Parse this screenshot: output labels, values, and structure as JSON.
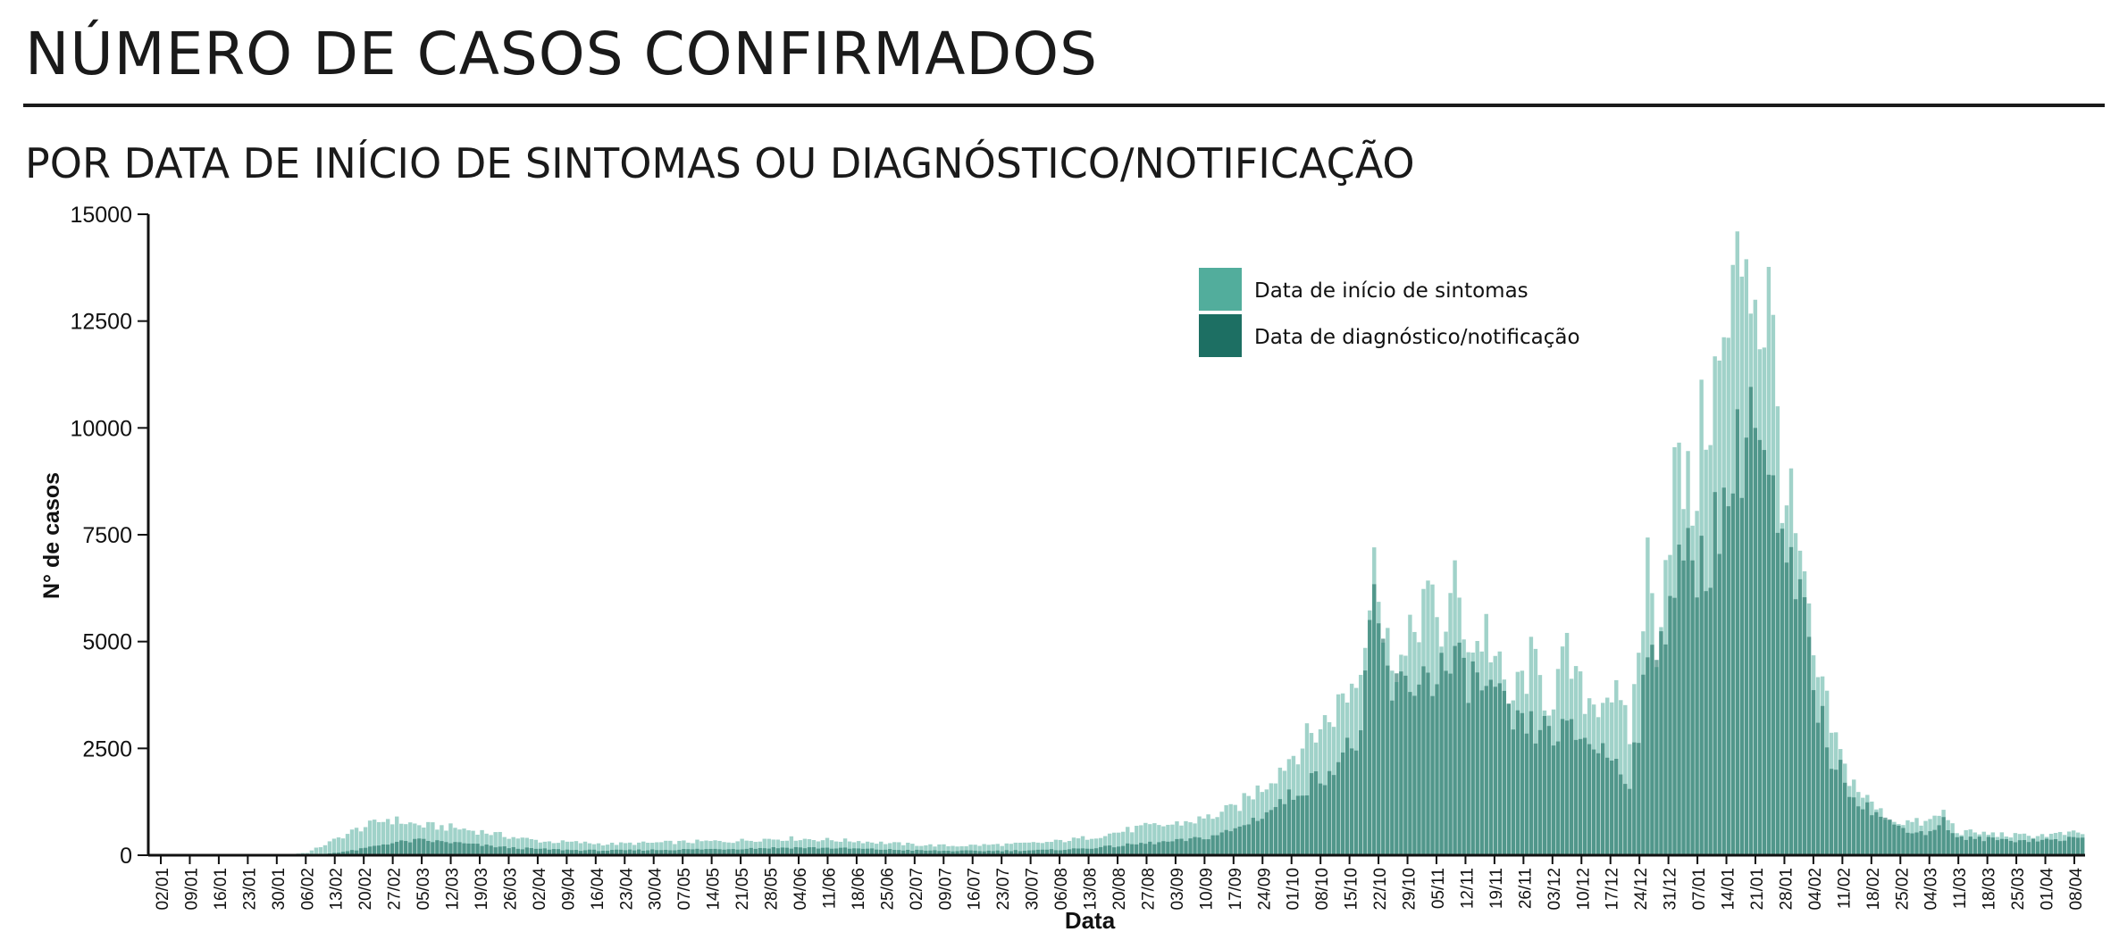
{
  "header": {
    "title": "NÚMERO DE CASOS CONFIRMADOS",
    "subtitle": "POR DATA DE INÍCIO DE SINTOMAS OU DIAGNÓSTICO/NOTIFICAÇÃO"
  },
  "colors": {
    "onset": "#52ad9c",
    "notification": "#1d6f63",
    "axis": "#111111"
  },
  "chart_data": {
    "type": "bar",
    "title": "NÚMERO DE CASOS CONFIRMADOS",
    "subtitle": "POR DATA DE INÍCIO DE SINTOMAS OU DIAGNÓSTICO/NOTIFICAÇÃO",
    "xlabel": "Data",
    "ylabel": "N° de casos",
    "ylim": [
      0,
      15000
    ],
    "yticks": [
      "0",
      "2500",
      "5000",
      "7500",
      "10000",
      "12500",
      "15000"
    ],
    "grid": false,
    "legend_position": "top-center",
    "x_start": "2020-02-02",
    "x_end": "2021-04-08",
    "x_tick_labels": [
      "02/01",
      "09/01",
      "16/01",
      "23/01",
      "30/01",
      "06/02",
      "13/02",
      "20/02",
      "27/02",
      "05/03",
      "12/03",
      "19/03",
      "26/03",
      "02/04",
      "09/04",
      "16/04",
      "23/04",
      "30/04",
      "07/05",
      "14/05",
      "21/05",
      "28/05",
      "04/06",
      "11/06",
      "18/06",
      "25/06",
      "02/07",
      "09/07",
      "16/07",
      "23/07",
      "30/07",
      "06/08",
      "13/08",
      "20/08",
      "27/08",
      "03/09",
      "10/09",
      "17/09",
      "24/09",
      "01/10",
      "08/10",
      "15/10",
      "22/10",
      "29/10",
      "05/11",
      "12/11",
      "19/11",
      "26/11",
      "03/12",
      "10/12",
      "17/12",
      "24/12",
      "31/12",
      "07/01",
      "14/01",
      "21/01",
      "28/01",
      "04/02",
      "11/02",
      "18/02",
      "25/02",
      "04/03",
      "11/03",
      "18/03",
      "25/03",
      "01/04",
      "08/04"
    ],
    "series": [
      {
        "name": "Data de início de sintomas",
        "color": "#52ad9c",
        "points": [
          [
            "2020-02-02",
            0
          ],
          [
            "2020-03-02",
            0
          ],
          [
            "2020-03-08",
            60
          ],
          [
            "2020-03-13",
            300
          ],
          [
            "2020-03-19",
            600
          ],
          [
            "2020-03-26",
            850
          ],
          [
            "2020-04-02",
            700
          ],
          [
            "2020-04-09",
            650
          ],
          [
            "2020-04-16",
            550
          ],
          [
            "2020-04-23",
            420
          ],
          [
            "2020-04-30",
            320
          ],
          [
            "2020-05-07",
            300
          ],
          [
            "2020-05-14",
            260
          ],
          [
            "2020-05-21",
            280
          ],
          [
            "2020-05-28",
            300
          ],
          [
            "2020-06-04",
            320
          ],
          [
            "2020-06-11",
            330
          ],
          [
            "2020-06-18",
            380
          ],
          [
            "2020-06-25",
            390
          ],
          [
            "2020-07-02",
            360
          ],
          [
            "2020-07-09",
            330
          ],
          [
            "2020-07-16",
            280
          ],
          [
            "2020-07-23",
            240
          ],
          [
            "2020-07-30",
            220
          ],
          [
            "2020-08-06",
            240
          ],
          [
            "2020-08-13",
            260
          ],
          [
            "2020-08-20",
            300
          ],
          [
            "2020-08-27",
            380
          ],
          [
            "2020-09-03",
            500
          ],
          [
            "2020-09-10",
            650
          ],
          [
            "2020-09-17",
            720
          ],
          [
            "2020-09-24",
            850
          ],
          [
            "2020-10-01",
            1100
          ],
          [
            "2020-10-08",
            1700
          ],
          [
            "2020-10-15",
            2500
          ],
          [
            "2020-10-22",
            3200
          ],
          [
            "2020-10-29",
            4300
          ],
          [
            "2020-11-01",
            7700
          ],
          [
            "2020-11-03",
            5000
          ],
          [
            "2020-11-08",
            4500
          ],
          [
            "2020-11-12",
            6100
          ],
          [
            "2020-11-16",
            5200
          ],
          [
            "2020-11-19",
            6200
          ],
          [
            "2020-11-23",
            4800
          ],
          [
            "2020-11-26",
            5300
          ],
          [
            "2020-12-01",
            3500
          ],
          [
            "2020-12-06",
            4500
          ],
          [
            "2020-12-10",
            3600
          ],
          [
            "2020-12-14",
            4600
          ],
          [
            "2020-12-17",
            3800
          ],
          [
            "2020-12-20",
            3600
          ],
          [
            "2020-12-24",
            3900
          ],
          [
            "2020-12-28",
            2800
          ],
          [
            "2021-01-01",
            6800
          ],
          [
            "2021-01-03",
            5000
          ],
          [
            "2021-01-07",
            9000
          ],
          [
            "2021-01-11",
            8200
          ],
          [
            "2021-01-14",
            10500
          ],
          [
            "2021-01-18",
            11500
          ],
          [
            "2021-01-21",
            13500
          ],
          [
            "2021-01-23",
            14600
          ],
          [
            "2021-01-26",
            12500
          ],
          [
            "2021-01-28",
            13000
          ],
          [
            "2021-01-31",
            9000
          ],
          [
            "2021-02-04",
            6800
          ],
          [
            "2021-02-07",
            4500
          ],
          [
            "2021-02-11",
            3000
          ],
          [
            "2021-02-14",
            2000
          ],
          [
            "2021-02-18",
            1400
          ],
          [
            "2021-02-22",
            1000
          ],
          [
            "2021-02-25",
            800
          ],
          [
            "2021-03-04",
            750
          ],
          [
            "2021-03-08",
            1000
          ],
          [
            "2021-03-11",
            550
          ],
          [
            "2021-03-18",
            500
          ],
          [
            "2021-03-25",
            450
          ],
          [
            "2021-04-01",
            480
          ],
          [
            "2021-04-08",
            520
          ]
        ]
      },
      {
        "name": "Data de diagnóstico/notificação",
        "color": "#1d6f63",
        "points": [
          [
            "2020-02-02",
            0
          ],
          [
            "2020-03-05",
            0
          ],
          [
            "2020-03-12",
            30
          ],
          [
            "2020-03-19",
            120
          ],
          [
            "2020-03-26",
            280
          ],
          [
            "2020-04-02",
            350
          ],
          [
            "2020-04-09",
            300
          ],
          [
            "2020-04-16",
            230
          ],
          [
            "2020-04-23",
            170
          ],
          [
            "2020-04-30",
            140
          ],
          [
            "2020-05-07",
            120
          ],
          [
            "2020-05-14",
            110
          ],
          [
            "2020-05-21",
            120
          ],
          [
            "2020-05-28",
            130
          ],
          [
            "2020-06-04",
            140
          ],
          [
            "2020-06-11",
            150
          ],
          [
            "2020-06-18",
            170
          ],
          [
            "2020-06-25",
            180
          ],
          [
            "2020-07-02",
            170
          ],
          [
            "2020-07-09",
            150
          ],
          [
            "2020-07-16",
            130
          ],
          [
            "2020-07-23",
            110
          ],
          [
            "2020-07-30",
            100
          ],
          [
            "2020-08-06",
            100
          ],
          [
            "2020-08-13",
            110
          ],
          [
            "2020-08-20",
            120
          ],
          [
            "2020-08-27",
            150
          ],
          [
            "2020-09-03",
            200
          ],
          [
            "2020-09-10",
            270
          ],
          [
            "2020-09-17",
            320
          ],
          [
            "2020-09-24",
            400
          ],
          [
            "2020-10-01",
            600
          ],
          [
            "2020-10-08",
            1000
          ],
          [
            "2020-10-15",
            1500
          ],
          [
            "2020-10-22",
            2000
          ],
          [
            "2020-10-29",
            2800
          ],
          [
            "2020-11-01",
            5800
          ],
          [
            "2020-11-05",
            3800
          ],
          [
            "2020-11-12",
            4200
          ],
          [
            "2020-11-19",
            4400
          ],
          [
            "2020-11-26",
            3900
          ],
          [
            "2020-12-03",
            3000
          ],
          [
            "2020-12-10",
            2900
          ],
          [
            "2020-12-17",
            2800
          ],
          [
            "2020-12-24",
            2300
          ],
          [
            "2020-12-28",
            1800
          ],
          [
            "2021-01-01",
            4300
          ],
          [
            "2021-01-07",
            6500
          ],
          [
            "2021-01-14",
            7000
          ],
          [
            "2021-01-21",
            9200
          ],
          [
            "2021-01-24",
            10700
          ],
          [
            "2021-01-28",
            8500
          ],
          [
            "2021-02-01",
            6500
          ],
          [
            "2021-02-04",
            6000
          ],
          [
            "2021-02-08",
            3500
          ],
          [
            "2021-02-11",
            2300
          ],
          [
            "2021-02-15",
            1600
          ],
          [
            "2021-02-18",
            1200
          ],
          [
            "2021-02-25",
            700
          ],
          [
            "2021-03-04",
            500
          ],
          [
            "2021-03-08",
            800
          ],
          [
            "2021-03-11",
            400
          ],
          [
            "2021-03-18",
            380
          ],
          [
            "2021-03-25",
            350
          ],
          [
            "2021-04-01",
            360
          ],
          [
            "2021-04-08",
            400
          ]
        ]
      }
    ]
  }
}
